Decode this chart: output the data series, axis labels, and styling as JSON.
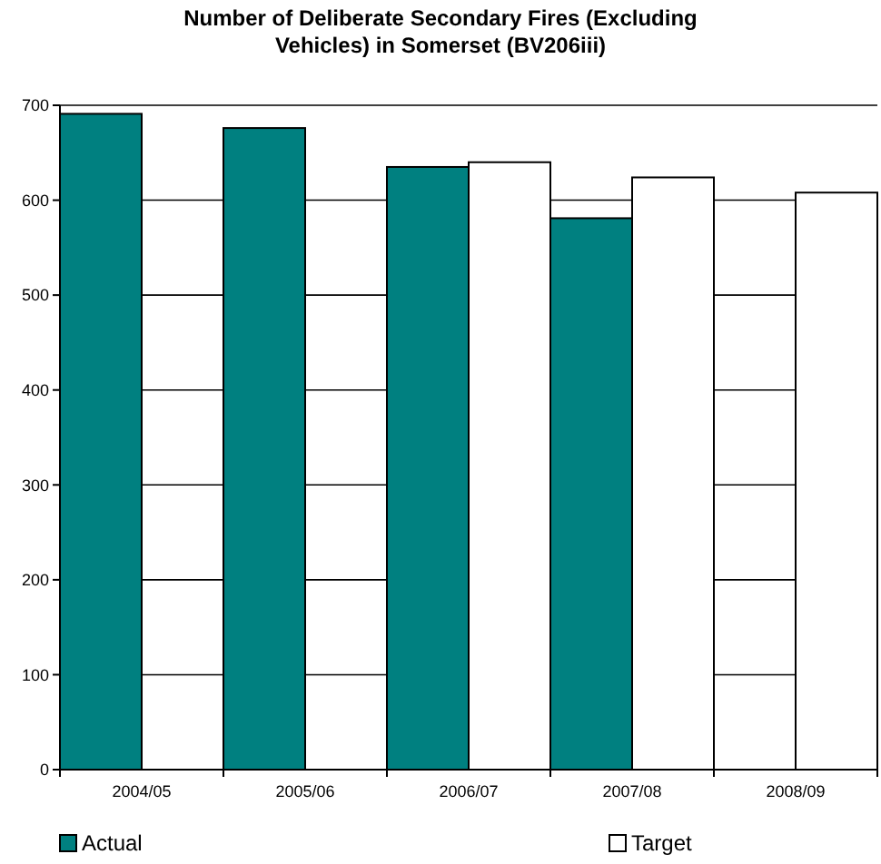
{
  "chart_data": {
    "type": "bar",
    "title": "Number of Deliberate Secondary Fires (Excluding Vehicles) in Somerset (BV206iii)",
    "categories": [
      "2004/05",
      "2005/06",
      "2006/07",
      "2007/08",
      "2008/09"
    ],
    "series": [
      {
        "name": "Actual",
        "color": "#008080",
        "values": [
          691,
          676,
          635,
          581,
          null
        ]
      },
      {
        "name": "Target",
        "color": "#ffffff",
        "values": [
          null,
          null,
          640,
          624,
          608
        ]
      }
    ],
    "ylim": [
      0,
      700
    ],
    "yticks": [
      0,
      100,
      200,
      300,
      400,
      500,
      600,
      700
    ],
    "grid": "y",
    "legend": "bottom"
  }
}
